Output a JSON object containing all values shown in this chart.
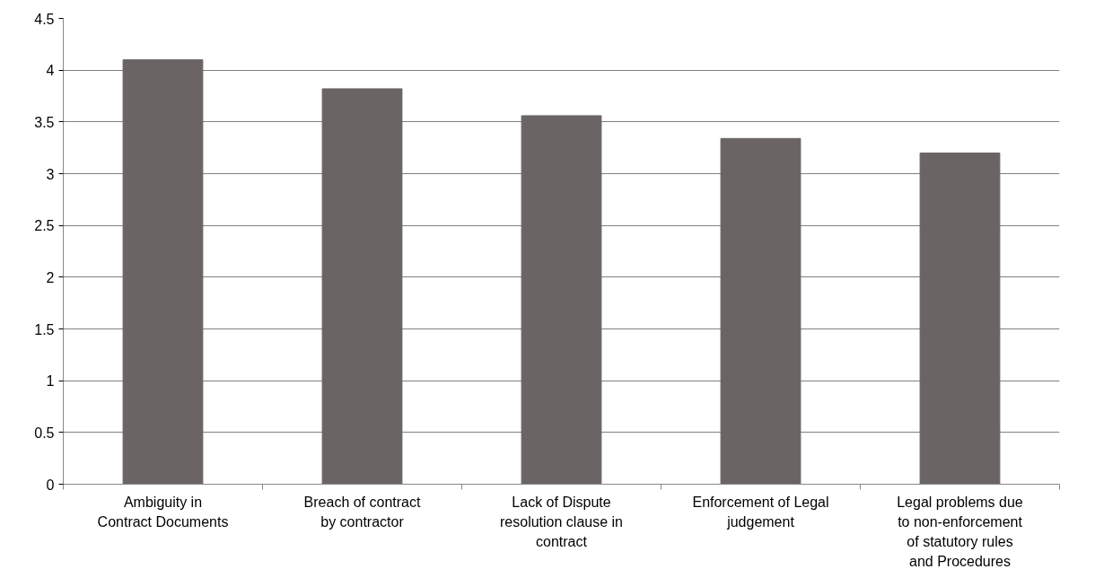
{
  "chart_data": {
    "type": "bar",
    "categories": [
      "Ambiguity in Contract Documents",
      "Breach of contract by contractor",
      "Lack of Dispute resolution clause in contract",
      "Enforcement of Legal judgement",
      "Legal problems due to non-enforcement of statutory rules and Procedures"
    ],
    "values": [
      4.1,
      3.82,
      3.56,
      3.34,
      3.2
    ],
    "color": "#6b6464",
    "ylim": [
      0,
      4.5
    ],
    "yticks": [
      0,
      {
        "value": 0.5,
        "label": "0.5"
      },
      1,
      {
        "value": 1.5,
        "label": "1.5"
      },
      2,
      {
        "value": 2.5,
        "label": "2.5"
      },
      3,
      {
        "value": 3.5,
        "label": "3.5"
      },
      4,
      {
        "value": 4.5,
        "label": "4.5"
      }
    ],
    "grid": "y"
  }
}
